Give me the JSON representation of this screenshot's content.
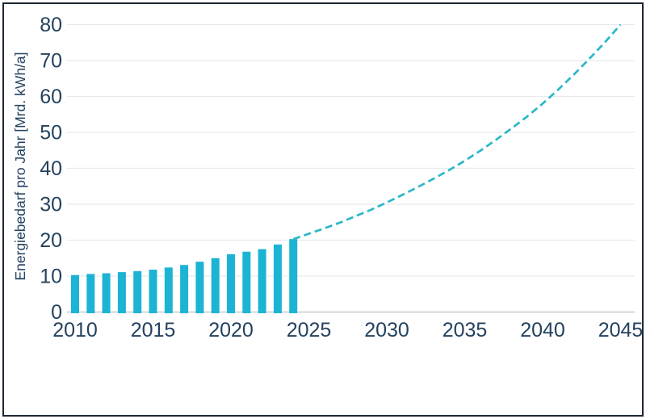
{
  "chart_data": {
    "type": "bar+line",
    "ylabel": "Energiebedarf pro Jahr [Mrd. kWh/a]",
    "xlabel": "",
    "x_ticks": [
      "2010",
      "2015",
      "2020",
      "2025",
      "2030",
      "2035",
      "2040",
      "2045"
    ],
    "x_tick_years": [
      2010,
      2015,
      2020,
      2025,
      2030,
      2035,
      2040,
      2045
    ],
    "y_ticks": [
      "0",
      "10",
      "20",
      "30",
      "40",
      "50",
      "60",
      "70",
      "80"
    ],
    "y_tick_values": [
      0,
      10,
      20,
      30,
      40,
      50,
      60,
      70,
      80
    ],
    "ylim": [
      0,
      80
    ],
    "xlim": [
      2009.5,
      2045.9
    ],
    "grid": "horizontal",
    "legend": "none",
    "bars": {
      "years": [
        2010,
        2011,
        2012,
        2013,
        2014,
        2015,
        2016,
        2017,
        2018,
        2019,
        2020,
        2021,
        2022,
        2023,
        2024
      ],
      "values": [
        10.3,
        10.6,
        10.8,
        11.1,
        11.4,
        11.8,
        12.4,
        13.1,
        14.0,
        15.0,
        16.1,
        16.8,
        17.5,
        18.8,
        20.3
      ],
      "color": "#1db3d4"
    },
    "projection_line": {
      "style": "dashed",
      "color": "#2ab8c8",
      "points": [
        [
          2024,
          20.3
        ],
        [
          2025,
          21.8
        ],
        [
          2026,
          23.3
        ],
        [
          2027,
          24.9
        ],
        [
          2028,
          26.7
        ],
        [
          2029,
          28.5
        ],
        [
          2030,
          30.5
        ],
        [
          2031,
          32.6
        ],
        [
          2032,
          34.8
        ],
        [
          2033,
          37.1
        ],
        [
          2034,
          39.5
        ],
        [
          2035,
          42.1
        ],
        [
          2036,
          44.9
        ],
        [
          2037,
          47.9
        ],
        [
          2038,
          51.1
        ],
        [
          2039,
          54.4
        ],
        [
          2040,
          58.0
        ],
        [
          2041,
          61.9
        ],
        [
          2042,
          66.1
        ],
        [
          2043,
          70.5
        ],
        [
          2044,
          75.1
        ],
        [
          2045,
          80.0
        ]
      ]
    },
    "colors": {
      "tick_label": "#24425f",
      "axis_title": "#24425f",
      "gridline": "#e9eaeb",
      "zero_axis": "#c0c0c0",
      "frame_border": "#1e2733",
      "background": "#ffffff"
    }
  }
}
